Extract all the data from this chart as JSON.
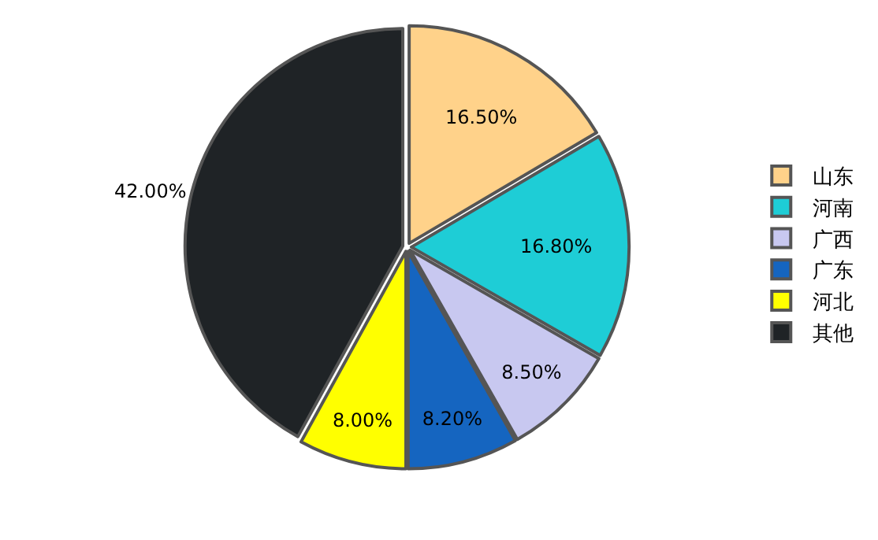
{
  "chart_data": {
    "type": "pie",
    "categories": [
      "山东",
      "河南",
      "广西",
      "广东",
      "河北",
      "其他"
    ],
    "values": [
      16.5,
      16.8,
      8.5,
      8.2,
      8.0,
      42.0
    ],
    "value_labels": [
      "16.50%",
      "16.80%",
      "8.50%",
      "8.20%",
      "8.00%",
      "42.00%"
    ],
    "colors": [
      "#ffd28a",
      "#1ecdd6",
      "#c8c8f0",
      "#1565c0",
      "#ffff00",
      "#1f2326"
    ],
    "legend": "right"
  }
}
